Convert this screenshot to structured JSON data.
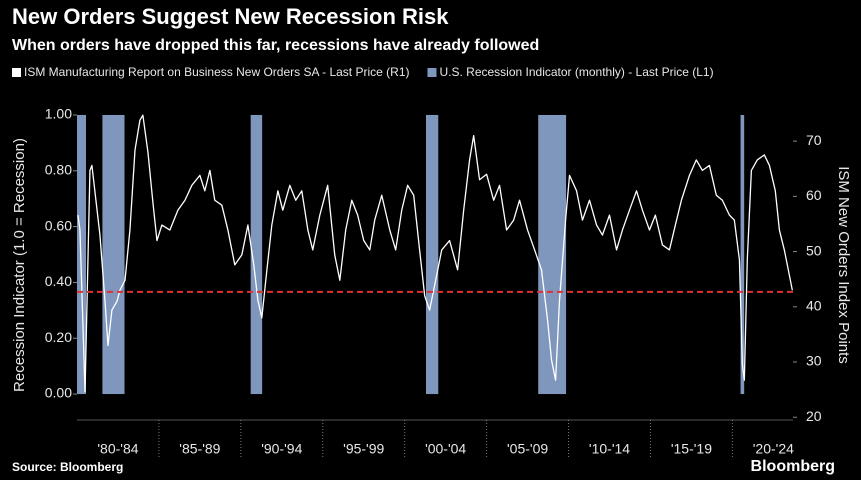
{
  "chart_data": {
    "type": "line",
    "title": "New Orders Suggest New Recession Risk",
    "subtitle": "When orders have dropped this far, recessions have already followed",
    "source": "Source: Bloomberg",
    "brand": "Bloomberg",
    "ylabel": "Recession Indicator (1.0 = Recession)",
    "y2label": "ISM New Orders Index Points",
    "xlim": [
      1980,
      2023.7
    ],
    "xticks": [
      {
        "value": 1982.5,
        "label": "'80-'84"
      },
      {
        "value": 1987.5,
        "label": "'85-'89"
      },
      {
        "value": 1992.5,
        "label": "'90-'94"
      },
      {
        "value": 1997.5,
        "label": "'95-'99"
      },
      {
        "value": 2002.5,
        "label": "'00-'04"
      },
      {
        "value": 2007.5,
        "label": "'05-'09"
      },
      {
        "value": 2012.5,
        "label": "'10-'14"
      },
      {
        "value": 2017.5,
        "label": "'15-'19"
      },
      {
        "value": 2022.5,
        "label": "'20-'24"
      }
    ],
    "ylim": [
      -0.093,
      1.025
    ],
    "yticks": [
      {
        "value": 0,
        "label": "0.00"
      },
      {
        "value": 0.2,
        "label": "0.20"
      },
      {
        "value": 0.4,
        "label": "0.40"
      },
      {
        "value": 0.6,
        "label": "0.60"
      },
      {
        "value": 0.8,
        "label": "0.80"
      },
      {
        "value": 1,
        "label": "1.00"
      }
    ],
    "y2lim": [
      19.5,
      76
    ],
    "y2ticks": [
      20,
      30,
      40,
      50,
      60,
      70
    ],
    "reference_line": {
      "value": 42.7,
      "axis": "y2",
      "color": "#e03030",
      "style": "dashed"
    },
    "series": [
      {
        "name": "ISM Manufacturing Report on Business New Orders SA - Last Price (R1)",
        "color": "#ffffff",
        "axis": "y2",
        "x": [
          1980.06,
          1980.18,
          1980.49,
          1980.79,
          1980.91,
          1981.4,
          1981.71,
          1981.89,
          1982.13,
          1982.44,
          1982.62,
          1982.93,
          1983.23,
          1983.54,
          1983.84,
          1984.02,
          1984.33,
          1984.63,
          1984.88,
          1985.18,
          1985.67,
          1986.16,
          1986.59,
          1987.01,
          1987.5,
          1987.8,
          1988.11,
          1988.41,
          1988.84,
          1989.21,
          1989.63,
          1990.06,
          1990.43,
          1990.79,
          1991.04,
          1991.28,
          1991.59,
          1991.89,
          1992.26,
          1992.56,
          1992.99,
          1993.35,
          1993.72,
          1994.09,
          1994.39,
          1994.82,
          1995.3,
          1995.73,
          1996.04,
          1996.4,
          1996.77,
          1997.13,
          1997.5,
          1997.87,
          1998.17,
          1998.6,
          1999.09,
          1999.45,
          1999.82,
          2000.18,
          2000.55,
          2000.91,
          2001.22,
          2001.52,
          2001.89,
          2002.26,
          2002.74,
          2003.23,
          2003.6,
          2003.96,
          2004.21,
          2004.57,
          2005.0,
          2005.43,
          2005.79,
          2006.22,
          2006.65,
          2007.01,
          2007.5,
          2007.93,
          2008.35,
          2008.72,
          2008.96,
          2009.21,
          2009.45,
          2009.82,
          2010.06,
          2010.49,
          2010.85,
          2011.28,
          2011.71,
          2012.07,
          2012.5,
          2012.93,
          2013.29,
          2013.72,
          2014.15,
          2014.51,
          2014.94,
          2015.3,
          2015.73,
          2016.16,
          2016.52,
          2016.89,
          2017.38,
          2017.8,
          2018.17,
          2018.6,
          2019.02,
          2019.39,
          2019.82,
          2020.12,
          2020.43,
          2020.61,
          2020.73,
          2020.91,
          2021.16,
          2021.52,
          2021.95,
          2022.26,
          2022.62,
          2022.87,
          2023.17,
          2023.48,
          2023.66
        ],
        "values": [
          56.6,
          53.9,
          24.6,
          64.7,
          65.6,
          53,
          41,
          33,
          39.4,
          41,
          43,
          44.8,
          53.9,
          68.4,
          73.8,
          74.7,
          68,
          59,
          52,
          54.8,
          53.9,
          57.5,
          59.3,
          62,
          63.8,
          61,
          64.7,
          59.3,
          58.4,
          53.9,
          47.6,
          49.4,
          54.8,
          47.6,
          41.2,
          38,
          46.7,
          54.8,
          61,
          57.5,
          62,
          59.3,
          61,
          53.9,
          50.3,
          56.6,
          62,
          49.4,
          44.8,
          53.9,
          59.3,
          56.6,
          52,
          50.3,
          55.7,
          60.2,
          53.9,
          50.3,
          57.5,
          62,
          60.2,
          50.3,
          42,
          39.4,
          44.8,
          50.3,
          52,
          46.7,
          57.5,
          66.6,
          71,
          63,
          64,
          59.3,
          62,
          53.9,
          55.7,
          59.3,
          53.9,
          50.3,
          46.7,
          37.6,
          30.4,
          26.7,
          41.2,
          55.7,
          63.8,
          61,
          55.7,
          59.3,
          54.8,
          53,
          56.6,
          50.3,
          53.9,
          57.5,
          61,
          57.5,
          53.9,
          56.6,
          51.2,
          50.3,
          54.8,
          59.3,
          63.8,
          66.6,
          64.7,
          65.6,
          60.2,
          59.3,
          56.6,
          55.7,
          48.5,
          29.5,
          26.7,
          48.5,
          64.7,
          66.6,
          67.5,
          65.6,
          61,
          53.9,
          50.3,
          45.7,
          43
        ]
      },
      {
        "name": "U.S. Recession Indicator (monthly) - Last Price (L1)",
        "color": "#7f97bd",
        "axis": "y",
        "periods": [
          [
            1980.0,
            1980.55
          ],
          [
            1981.55,
            1982.9
          ],
          [
            1990.6,
            1991.3
          ],
          [
            2001.3,
            2002.05
          ],
          [
            2008.15,
            2009.85
          ],
          [
            2020.5,
            2020.72
          ]
        ],
        "values": [
          1,
          1,
          1,
          1,
          1,
          1
        ]
      }
    ]
  }
}
